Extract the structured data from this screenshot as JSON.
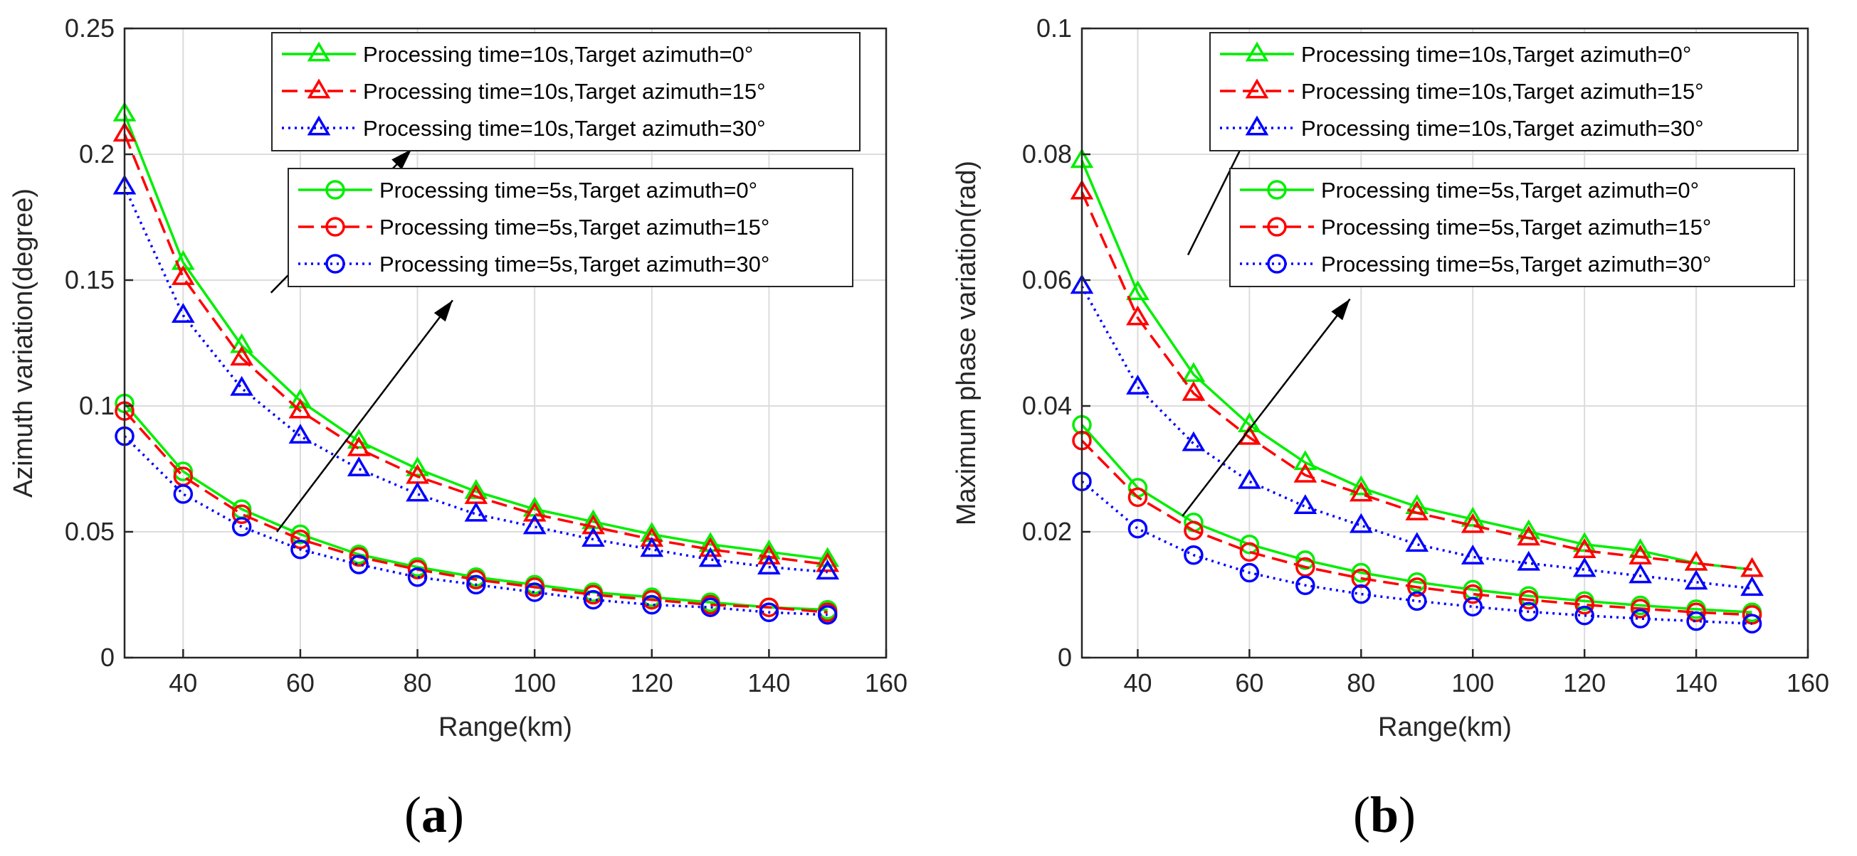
{
  "colors": {
    "green": "#00ee00",
    "red": "#ff0000",
    "blue": "#0000ff",
    "axis": "#262626",
    "grid": "#dcdcdc"
  },
  "chart_data": [
    {
      "type": "line",
      "panel_label": "a",
      "xlabel": "Range(km)",
      "ylabel": "Azimuth variation(degree)",
      "xlim": [
        30,
        160
      ],
      "ylim": [
        0,
        0.25
      ],
      "xticks": [
        40,
        60,
        80,
        100,
        120,
        140,
        160
      ],
      "xtick_labels": [
        "40",
        "60",
        "80",
        "100",
        "120",
        "140",
        "160"
      ],
      "yticks": [
        0,
        0.05,
        0.1,
        0.15,
        0.2,
        0.25
      ],
      "ytick_labels": [
        "0",
        "0.05",
        "0.1",
        "0.15",
        "0.2",
        "0.25"
      ],
      "grid": true,
      "x": [
        30,
        40,
        50,
        60,
        70,
        80,
        90,
        100,
        110,
        120,
        130,
        140,
        150
      ],
      "series": [
        {
          "name": "Processing time=10s,Target azimuth=0°",
          "color": "green",
          "dash": "solid",
          "marker": "triangle",
          "values": [
            0.216,
            0.157,
            0.124,
            0.102,
            0.086,
            0.075,
            0.066,
            0.059,
            0.054,
            0.049,
            0.045,
            0.042,
            0.039
          ]
        },
        {
          "name": "Processing time=10s,Target azimuth=15°",
          "color": "red",
          "dash": "dashed",
          "marker": "triangle",
          "values": [
            0.208,
            0.151,
            0.119,
            0.098,
            0.083,
            0.072,
            0.064,
            0.057,
            0.052,
            0.047,
            0.043,
            0.04,
            0.037
          ]
        },
        {
          "name": "Processing time=10s,Target azimuth=30°",
          "color": "blue",
          "dash": "dotted",
          "marker": "triangle",
          "values": [
            0.187,
            0.136,
            0.107,
            0.088,
            0.075,
            0.065,
            0.057,
            0.052,
            0.047,
            0.043,
            0.039,
            0.036,
            0.034
          ]
        },
        {
          "name": "Processing time=5s,Target azimuth=0°",
          "color": "green",
          "dash": "solid",
          "marker": "circle",
          "values": [
            0.101,
            0.074,
            0.059,
            0.049,
            0.041,
            0.036,
            0.032,
            0.029,
            0.026,
            0.024,
            0.022,
            0.02,
            0.019
          ]
        },
        {
          "name": "Processing time=5s,Target azimuth=15°",
          "color": "red",
          "dash": "dashed",
          "marker": "circle",
          "values": [
            0.098,
            0.072,
            0.057,
            0.047,
            0.04,
            0.035,
            0.031,
            0.028,
            0.025,
            0.023,
            0.021,
            0.02,
            0.018
          ]
        },
        {
          "name": "Processing time=5s,Target azimuth=30°",
          "color": "blue",
          "dash": "dotted",
          "marker": "circle",
          "values": [
            0.088,
            0.065,
            0.052,
            0.043,
            0.037,
            0.032,
            0.029,
            0.026,
            0.023,
            0.021,
            0.02,
            0.018,
            0.017
          ]
        }
      ],
      "legend_groups": [
        {
          "placement": "top-right",
          "series": [
            0,
            1,
            2
          ]
        },
        {
          "placement": "upper-right",
          "series": [
            3,
            4,
            5
          ]
        }
      ],
      "annotations": [
        {
          "type": "arrow",
          "from": [
            55,
            0.145
          ],
          "to": [
            79,
            0.202
          ]
        },
        {
          "type": "arrow",
          "from": [
            56,
            0.05
          ],
          "to": [
            86,
            0.142
          ]
        }
      ]
    },
    {
      "type": "line",
      "panel_label": "b",
      "xlabel": "Range(km)",
      "ylabel": "Maximum phase variation(rad)",
      "xlim": [
        30,
        160
      ],
      "ylim": [
        0,
        0.1
      ],
      "xticks": [
        40,
        60,
        80,
        100,
        120,
        140,
        160
      ],
      "xtick_labels": [
        "40",
        "60",
        "80",
        "100",
        "120",
        "140",
        "160"
      ],
      "yticks": [
        0,
        0.02,
        0.04,
        0.06,
        0.08,
        0.1
      ],
      "ytick_labels": [
        "0",
        "0.02",
        "0.04",
        "0.06",
        "0.08",
        "0.1"
      ],
      "grid": true,
      "x": [
        30,
        40,
        50,
        60,
        70,
        80,
        90,
        100,
        110,
        120,
        130,
        140,
        150
      ],
      "series": [
        {
          "name": "Processing time=10s,Target azimuth=0°",
          "color": "green",
          "dash": "solid",
          "marker": "triangle",
          "values": [
            0.079,
            0.058,
            0.045,
            0.037,
            0.031,
            0.027,
            0.024,
            0.022,
            0.02,
            0.018,
            0.017,
            0.015,
            0.014
          ]
        },
        {
          "name": "Processing time=10s,Target azimuth=15°",
          "color": "red",
          "dash": "dashed",
          "marker": "triangle",
          "values": [
            0.074,
            0.054,
            0.042,
            0.035,
            0.029,
            0.026,
            0.023,
            0.021,
            0.019,
            0.017,
            0.016,
            0.015,
            0.014
          ]
        },
        {
          "name": "Processing time=10s,Target azimuth=30°",
          "color": "blue",
          "dash": "dotted",
          "marker": "triangle",
          "values": [
            0.059,
            0.043,
            0.034,
            0.028,
            0.024,
            0.021,
            0.018,
            0.016,
            0.015,
            0.014,
            0.013,
            0.012,
            0.011
          ]
        },
        {
          "name": "Processing time=5s,Target azimuth=0°",
          "color": "green",
          "dash": "solid",
          "marker": "circle",
          "values": [
            0.037,
            0.027,
            0.0215,
            0.018,
            0.0155,
            0.0135,
            0.012,
            0.0108,
            0.0098,
            0.009,
            0.0083,
            0.0077,
            0.0072
          ]
        },
        {
          "name": "Processing time=5s,Target azimuth=15°",
          "color": "red",
          "dash": "dashed",
          "marker": "circle",
          "values": [
            0.0345,
            0.0255,
            0.0202,
            0.0168,
            0.0144,
            0.0126,
            0.0112,
            0.0101,
            0.0092,
            0.0084,
            0.0078,
            0.0072,
            0.0068
          ]
        },
        {
          "name": "Processing time=5s,Target azimuth=30°",
          "color": "blue",
          "dash": "dotted",
          "marker": "circle",
          "values": [
            0.028,
            0.0205,
            0.0163,
            0.0135,
            0.0115,
            0.0101,
            0.009,
            0.0081,
            0.0073,
            0.0067,
            0.0062,
            0.0058,
            0.0054
          ]
        }
      ],
      "legend_groups": [
        {
          "placement": "top-right",
          "series": [
            0,
            1,
            2
          ]
        },
        {
          "placement": "upper-right",
          "series": [
            3,
            4,
            5
          ]
        }
      ],
      "annotations": [
        {
          "type": "arrow",
          "from": [
            49,
            0.064
          ],
          "to": [
            63,
            0.089
          ]
        },
        {
          "type": "arrow",
          "from": [
            48,
            0.0225
          ],
          "to": [
            78,
            0.057
          ]
        }
      ]
    }
  ]
}
